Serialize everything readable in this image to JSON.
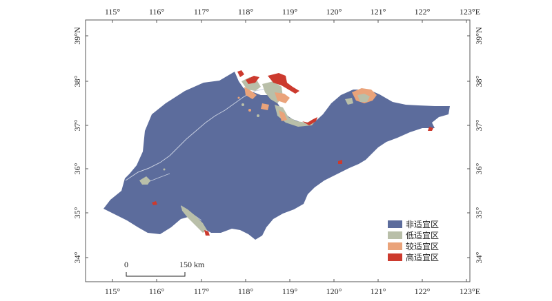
{
  "map": {
    "lon_ticks": [
      "115°",
      "116°",
      "117°",
      "118°",
      "119°",
      "120°",
      "121°",
      "122°",
      "123°E"
    ],
    "lat_ticks": [
      "39°N",
      "38°",
      "37°",
      "36°",
      "35°",
      "34°"
    ],
    "scale_bar": {
      "start_label": "0",
      "end_label": "150 km"
    },
    "legend": [
      {
        "label": "非适宜区",
        "color": "#5c6c9c",
        "icon": "swatch"
      },
      {
        "label": "低适宜区",
        "color": "#b9bfa9",
        "icon": "swatch"
      },
      {
        "label": "较适宜区",
        "color": "#eaa37a",
        "icon": "swatch"
      },
      {
        "label": "高适宜区",
        "color": "#cc3a2e",
        "icon": "swatch"
      }
    ],
    "colors": {
      "land": "#5c6c9c",
      "frame": "#555555",
      "river": "#c8cfe0",
      "background": "#ffffff"
    }
  }
}
